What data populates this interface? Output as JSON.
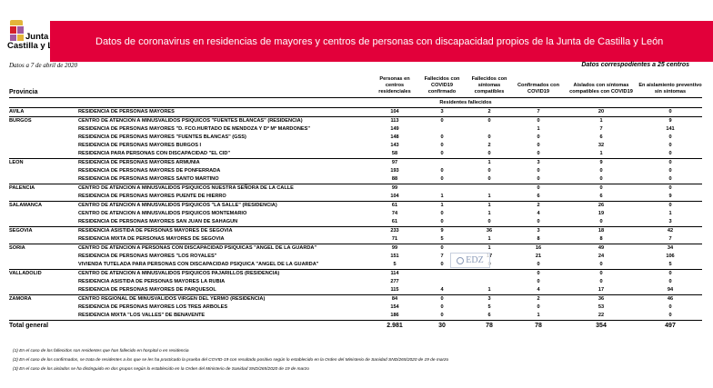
{
  "logo": {
    "line1": "Junta de",
    "line2": "Castilla y León"
  },
  "title": "Datos de coronavirus en residencias de mayores y centros de personas con discapacidad propios de la Junta de Castilla y León",
  "date": "Datos a 7 de abril de 2020",
  "centros_note": "Datos correspodientes a 25 centros",
  "headers": {
    "provincia": "Provincia",
    "personas": "Personas en centros residenciales",
    "fall_conf": "Fallecidos con COVID19 confirmado",
    "fall_sint": "Fallecidos con síntomas compatibles",
    "confirmados": "Confirmados con COVID19",
    "aislados": "Aislados con síntomas compatibles con COVID19",
    "preventivo": "En aislamiento preventivo sin síntomas",
    "residentes_fallecidos": "Residentes fallecidos"
  },
  "groups": [
    {
      "province": "AVILA",
      "rows": [
        [
          "RESIDENCIA DE PERSONAS MAYORES",
          "104",
          "3",
          "2",
          "7",
          "20",
          "0"
        ]
      ]
    },
    {
      "province": "BURGOS",
      "rows": [
        [
          "CENTRO DE ATENCION A MINUSVALIDOS PSIQUICOS \"FUENTES BLANCAS\" (RESIDENCIA)",
          "113",
          "0",
          "0",
          "0",
          "1",
          "9"
        ],
        [
          "RESIDENCIA DE PERSONAS MAYORES \"D. FCO.HURTADO DE MENDOZA Y Dª Mª MARDONES\"",
          "149",
          "",
          "",
          "1",
          "7",
          "141"
        ],
        [
          "RESIDENCIA DE PERSONAS MAYORES \"FUENTES BLANCAS\" (GSS)",
          "148",
          "0",
          "0",
          "0",
          "6",
          "0"
        ],
        [
          "RESIDENCIA DE PERSONAS MAYORES BURGOS I",
          "143",
          "0",
          "2",
          "0",
          "32",
          "0"
        ],
        [
          "RESIDENCIA PARA PERSONAS CON DISCAPACIDAD  \"EL CID\"",
          "58",
          "0",
          "0",
          "0",
          "1",
          "0"
        ]
      ]
    },
    {
      "province": "LEON",
      "rows": [
        [
          "RESIDENCIA DE PERSONAS MAYORES ARMUNIA",
          "97",
          "",
          "1",
          "3",
          "9",
          "0"
        ],
        [
          "RESIDENCIA DE PERSONAS MAYORES DE PONFERRADA",
          "193",
          "0",
          "0",
          "0",
          "0",
          "0"
        ],
        [
          "RESIDENCIA DE PERSONAS MAYORES SANTO MARTINO",
          "88",
          "0",
          "0",
          "0",
          "0",
          "0"
        ]
      ]
    },
    {
      "province": "PALENCIA",
      "rows": [
        [
          "CENTRO DE ATENCION A MINUSVALIDOS PSIQUICOS NUESTRA SEÑORA DE LA CALLE",
          "99",
          "",
          "",
          "0",
          "0",
          "0"
        ],
        [
          "RESIDENCIA DE PERSONAS MAYORES PUENTE DE HIERRO",
          "104",
          "1",
          "1",
          "6",
          "6",
          "9"
        ]
      ]
    },
    {
      "province": "SALAMANCA",
      "rows": [
        [
          "CENTRO DE ATENCION A MINUSVALIDOS PSIQUICOS \"LA SALLE\" (RESIDENCIA)",
          "61",
          "1",
          "1",
          "2",
          "26",
          "0"
        ],
        [
          "CENTRO DE ATENCION A MINUSVALIDOS PSIQUICOS MONTEMARIO",
          "74",
          "0",
          "1",
          "4",
          "19",
          "1"
        ],
        [
          "RESIDENCIA DE PERSONAS MAYORES SAN JUAN DE SAHAGUN",
          "61",
          "0",
          "0",
          "0",
          "0",
          "3"
        ]
      ]
    },
    {
      "province": "SEGOVIA",
      "rows": [
        [
          "RESIDENCIA ASISTIDA DE PERSONAS MAYORES DE SEGOVIA",
          "233",
          "9",
          "36",
          "3",
          "18",
          "42"
        ],
        [
          "RESIDENCIA MIXTA DE PERSONAS MAYORES DE SEGOVIA",
          "71",
          "5",
          "1",
          "8",
          "8",
          "7"
        ]
      ]
    },
    {
      "province": "SORIA",
      "rows": [
        [
          "CENTRO DE ATENCION A PERSONAS CON DISCAPACIDAD PSIQUICAS \"ANGEL DE LA GUARDA\"",
          "99",
          "0",
          "1",
          "16",
          "49",
          "34"
        ],
        [
          "RESIDENCIA DE PERSONAS MAYORES \"LOS ROYALES\"",
          "151",
          "7",
          "17",
          "21",
          "24",
          "106"
        ],
        [
          "VIVIENDA TUTELADA PARA PERSONAS CON DISCAPACIDAD PSIQUICA \"ANGEL DE LA GUARDA\"",
          "5",
          "0",
          "0",
          "0",
          "0",
          "5"
        ]
      ]
    },
    {
      "province": "VALLADOLID",
      "rows": [
        [
          "CENTRO DE ATENCION A MINUSVALIDOS PSIQUICOS PAJARILLOS (RESIDENCIA)",
          "114",
          "",
          "",
          "0",
          "0",
          "0"
        ],
        [
          "RESIDENCIA ASISTIDA DE PERSONAS MAYORES LA RUBIA",
          "277",
          "",
          "",
          "0",
          "0",
          "0"
        ],
        [
          "RESIDENCIA DE PERSONAS MAYORES DE PARQUESOL",
          "115",
          "4",
          "1",
          "4",
          "17",
          "94"
        ]
      ]
    },
    {
      "province": "ZAMORA",
      "rows": [
        [
          "CENTRO REGIONAL DE MINUSVALIDOS VIRGEN DEL YERMO (RESIDENCIA)",
          "84",
          "0",
          "3",
          "2",
          "36",
          "46"
        ],
        [
          "RESIDENCIA DE PERSONAS MAYORES LOS TRES ARBOLES",
          "154",
          "0",
          "5",
          "0",
          "53",
          "0"
        ],
        [
          "RESIDENCIA MIXTA \"LOS VALLES\"  DE BENAVENTE",
          "186",
          "0",
          "6",
          "1",
          "22",
          "0"
        ]
      ]
    }
  ],
  "total": [
    "Total general",
    "2.981",
    "30",
    "78",
    "78",
    "354",
    "497"
  ],
  "notes": [
    "(1) En el caso de los fallecidos son residentes que han fallecido en hospital o en residencia",
    "(2) En el caso de los confirmados, se trata de residentes a los que se les ha practicado la prueba del COVID-19 con resultado positivo según lo establecido en la Orden del Ministerio de Sanidad SND/265/2020 de 19 de marzo",
    "(3) En el caso de los aislados se ha distinguido en dos grupos según lo establecido en la Orden del Ministerio de Sanidad SND/265/2020 de 19 de marzo"
  ],
  "watermark": "EDZ"
}
